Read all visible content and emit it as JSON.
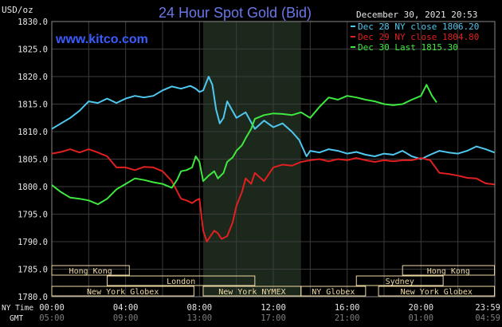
{
  "header": {
    "title": "24 Hour Spot Gold (Bid)",
    "currency": "USD/oz",
    "timestamp": "December 30, 2021 20:53",
    "website": "www.kitco.com"
  },
  "time_rows": {
    "ny_label": "NY Time",
    "gmt_label": "GMT",
    "ny_ticks": [
      "00:00",
      "04:00",
      "08:00",
      "12:00",
      "16:00",
      "20:00",
      "23:59"
    ],
    "gmt_ticks": [
      "05:00",
      "09:00",
      "13:00",
      "17:00",
      "21:00",
      "01:00",
      "04:59"
    ]
  },
  "sessions": [
    {
      "label": "Hong Kong",
      "start": 0.0,
      "end": 4.2
    },
    {
      "label": "London",
      "start": 3.0,
      "end": 11.0
    },
    {
      "label": "New York Globex",
      "start": 0.0,
      "end": 7.7
    },
    {
      "label": "New York NYMEX",
      "start": 8.2,
      "end": 13.5
    },
    {
      "label": "NY Globex",
      "start": 13.5,
      "end": 17.0
    },
    {
      "label": "Hong Kong",
      "start": 19.0,
      "end": 23.98
    },
    {
      "label": "Sydney",
      "start": 16.5,
      "end": 21.2
    },
    {
      "label": "New York Globex",
      "start": 17.7,
      "end": 23.98
    }
  ],
  "colors": {
    "dec28": "#4fc8ef",
    "dec29": "#e02020",
    "dec30": "#3ee83e",
    "highlight": "#1d281d",
    "grid": "#3c3c3c",
    "session_box": "#efd9a4"
  },
  "chart_data": {
    "type": "line",
    "title": "24 Hour Spot Gold (Bid)",
    "ylabel": "USD/oz",
    "xlabel": "NY Time / GMT",
    "ylim": [
      1780,
      1830
    ],
    "xlim": [
      0,
      24
    ],
    "y_ticks": [
      "1780.0",
      "1785.0",
      "1790.0",
      "1795.0",
      "1800.0",
      "1805.0",
      "1810.0",
      "1815.0",
      "1820.0",
      "1825.0",
      "1830.0"
    ],
    "grid": true,
    "legend_position": "top-right",
    "highlight_hours": [
      8.2,
      13.5
    ],
    "series": [
      {
        "name": "Dec 28 NY close 1806.20",
        "color": "#4fc8ef",
        "x": [
          0,
          0.5,
          1,
          1.5,
          2,
          2.5,
          3,
          3.5,
          4,
          4.5,
          5,
          5.5,
          6,
          6.5,
          7,
          7.5,
          7.8,
          8.0,
          8.2,
          8.5,
          8.7,
          8.9,
          9.1,
          9.3,
          9.5,
          10,
          10.5,
          11,
          11.5,
          12,
          12.5,
          13,
          13.4,
          13.8,
          14,
          14.5,
          15,
          15.5,
          16,
          16.5,
          17,
          17.5,
          18,
          18.5,
          19,
          19.5,
          20,
          20.5,
          21,
          21.5,
          22,
          22.5,
          23,
          23.5,
          23.98
        ],
        "y": [
          1810.5,
          1811.5,
          1812.5,
          1813.8,
          1815.5,
          1815.2,
          1816.0,
          1815.2,
          1816.0,
          1816.5,
          1816.2,
          1816.5,
          1817.5,
          1818.2,
          1817.8,
          1818.3,
          1817.8,
          1817.2,
          1817.5,
          1820.0,
          1818.5,
          1814.0,
          1811.5,
          1812.5,
          1815.5,
          1812.5,
          1813.5,
          1810.5,
          1812.0,
          1810.8,
          1811.5,
          1810.0,
          1808.5,
          1805.5,
          1806.5,
          1806.2,
          1806.8,
          1806.5,
          1806.0,
          1806.3,
          1805.8,
          1805.5,
          1806.0,
          1805.8,
          1806.5,
          1805.5,
          1805.0,
          1805.8,
          1806.5,
          1806.2,
          1806.0,
          1806.5,
          1807.3,
          1806.8,
          1806.2
        ]
      },
      {
        "name": "Dec 29 NY close 1804.80",
        "color": "#e02020",
        "x": [
          0,
          0.5,
          1,
          1.5,
          2,
          2.5,
          3,
          3.5,
          4,
          4.5,
          5,
          5.5,
          6,
          6.5,
          7,
          7.3,
          7.6,
          7.8,
          8.0,
          8.2,
          8.4,
          8.6,
          8.8,
          9.0,
          9.2,
          9.5,
          9.8,
          10,
          10.3,
          10.5,
          10.8,
          11,
          11.5,
          12,
          12.5,
          13,
          13.5,
          14,
          14.5,
          15,
          15.5,
          16,
          16.5,
          17,
          17.5,
          18,
          18.5,
          19,
          19.5,
          20,
          20.5,
          21,
          21.5,
          22,
          22.5,
          23,
          23.5,
          23.98
        ],
        "y": [
          1806.0,
          1806.3,
          1806.8,
          1806.2,
          1806.8,
          1806.2,
          1805.5,
          1803.5,
          1803.5,
          1803.0,
          1803.6,
          1803.5,
          1802.8,
          1801.0,
          1797.8,
          1797.5,
          1797.0,
          1797.5,
          1797.8,
          1792.0,
          1790.0,
          1791.0,
          1792.0,
          1791.5,
          1790.5,
          1791.0,
          1793.5,
          1796.5,
          1799.0,
          1801.5,
          1800.5,
          1802.5,
          1801.0,
          1803.5,
          1804.0,
          1803.8,
          1804.5,
          1804.8,
          1805.0,
          1804.6,
          1805.0,
          1804.8,
          1805.2,
          1804.8,
          1804.5,
          1804.8,
          1804.6,
          1804.8,
          1804.8,
          1805.2,
          1804.8,
          1802.5,
          1802.3,
          1802.0,
          1801.6,
          1801.5,
          1800.6,
          1800.4
        ]
      },
      {
        "name": "Dec 30 Last 1815.30",
        "color": "#3ee83e",
        "x": [
          0,
          0.5,
          1,
          1.5,
          2,
          2.5,
          3,
          3.5,
          4,
          4.5,
          5,
          5.5,
          6,
          6.5,
          6.8,
          7.0,
          7.3,
          7.6,
          7.8,
          8.0,
          8.2,
          8.5,
          8.8,
          9.0,
          9.3,
          9.5,
          9.8,
          10,
          10.3,
          10.5,
          10.8,
          11,
          11.5,
          12,
          12.5,
          13,
          13.5,
          14,
          14.5,
          15,
          15.5,
          16,
          16.5,
          17,
          17.5,
          18,
          18.5,
          19,
          19.5,
          20,
          20.3,
          20.6,
          20.85
        ],
        "y": [
          1800.3,
          1799.0,
          1798.0,
          1797.8,
          1797.5,
          1796.8,
          1797.8,
          1799.5,
          1800.5,
          1801.5,
          1801.2,
          1800.8,
          1800.5,
          1799.8,
          1801.3,
          1802.8,
          1803.0,
          1803.5,
          1805.5,
          1804.5,
          1801.0,
          1802.0,
          1802.8,
          1801.5,
          1802.5,
          1804.5,
          1805.3,
          1806.5,
          1807.5,
          1808.8,
          1810.5,
          1812.3,
          1813.0,
          1813.3,
          1813.2,
          1813.0,
          1813.5,
          1812.5,
          1814.5,
          1816.2,
          1815.8,
          1816.5,
          1816.2,
          1815.8,
          1815.5,
          1815.0,
          1814.8,
          1815.0,
          1815.8,
          1816.5,
          1818.5,
          1816.5,
          1815.3
        ]
      }
    ]
  }
}
